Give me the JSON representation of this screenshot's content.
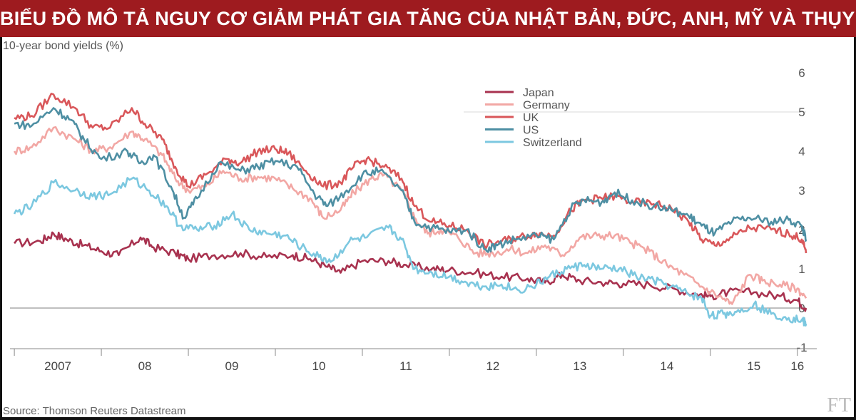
{
  "banner": {
    "title": "BIỂU ĐỒ MÔ TẢ NGUY CƠ GIẢM PHÁT GIA TĂNG CỦA NHẬT BẢN, ĐỨC, ANH, MỸ VÀ THỤY SỸ"
  },
  "footer": {
    "source": "Source: Thomson Reuters Datastream",
    "logo_text": "FT"
  },
  "chart_data": {
    "type": "line",
    "ylabel": "10-year bond yields (%)",
    "ylim": [
      -1,
      6
    ],
    "y_ticks": [
      6,
      5,
      4,
      3,
      2,
      1,
      0,
      -1
    ],
    "x_range": [
      2006.95,
      2016.1
    ],
    "x_ticks": [
      {
        "label": "2007",
        "x": 2007.5
      },
      {
        "label": "08",
        "x": 2008.5
      },
      {
        "label": "09",
        "x": 2009.5
      },
      {
        "label": "10",
        "x": 2010.5
      },
      {
        "label": "11",
        "x": 2011.5
      },
      {
        "label": "12",
        "x": 2012.5
      },
      {
        "label": "13",
        "x": 2013.5
      },
      {
        "label": "14",
        "x": 2014.5
      },
      {
        "label": "15",
        "x": 2015.5
      },
      {
        "label": "16",
        "x": 2016.0
      }
    ],
    "grid": true,
    "legend_position": "top-center",
    "series": [
      {
        "name": "Japan",
        "color": "#a8324f",
        "points": [
          [
            2007.0,
            1.65
          ],
          [
            2007.3,
            1.7
          ],
          [
            2007.45,
            1.9
          ],
          [
            2007.6,
            1.75
          ],
          [
            2007.8,
            1.6
          ],
          [
            2008.0,
            1.45
          ],
          [
            2008.2,
            1.35
          ],
          [
            2008.45,
            1.8
          ],
          [
            2008.6,
            1.55
          ],
          [
            2008.85,
            1.4
          ],
          [
            2009.0,
            1.25
          ],
          [
            2009.3,
            1.35
          ],
          [
            2009.6,
            1.4
          ],
          [
            2009.9,
            1.3
          ],
          [
            2010.2,
            1.35
          ],
          [
            2010.4,
            1.25
          ],
          [
            2010.6,
            1.05
          ],
          [
            2010.75,
            0.9
          ],
          [
            2011.0,
            1.2
          ],
          [
            2011.3,
            1.2
          ],
          [
            2011.5,
            1.1
          ],
          [
            2011.8,
            1.0
          ],
          [
            2012.0,
            0.97
          ],
          [
            2012.3,
            0.9
          ],
          [
            2012.6,
            0.8
          ],
          [
            2012.9,
            0.75
          ],
          [
            2013.1,
            0.65
          ],
          [
            2013.3,
            0.85
          ],
          [
            2013.5,
            0.7
          ],
          [
            2013.8,
            0.65
          ],
          [
            2014.0,
            0.62
          ],
          [
            2014.3,
            0.6
          ],
          [
            2014.6,
            0.48
          ],
          [
            2014.85,
            0.35
          ],
          [
            2015.0,
            0.3
          ],
          [
            2015.2,
            0.4
          ],
          [
            2015.5,
            0.4
          ],
          [
            2015.8,
            0.3
          ],
          [
            2016.0,
            0.2
          ],
          [
            2016.1,
            0.0
          ]
        ]
      },
      {
        "name": "Germany",
        "color": "#f2a7a4",
        "points": [
          [
            2007.0,
            4.0
          ],
          [
            2007.2,
            4.1
          ],
          [
            2007.45,
            4.6
          ],
          [
            2007.7,
            4.3
          ],
          [
            2007.9,
            4.0
          ],
          [
            2008.1,
            4.1
          ],
          [
            2008.35,
            4.5
          ],
          [
            2008.5,
            4.3
          ],
          [
            2008.7,
            3.9
          ],
          [
            2008.85,
            3.3
          ],
          [
            2009.0,
            3.0
          ],
          [
            2009.2,
            3.1
          ],
          [
            2009.4,
            3.5
          ],
          [
            2009.6,
            3.3
          ],
          [
            2009.8,
            3.35
          ],
          [
            2010.0,
            3.3
          ],
          [
            2010.2,
            3.05
          ],
          [
            2010.4,
            2.8
          ],
          [
            2010.55,
            2.3
          ],
          [
            2010.75,
            2.5
          ],
          [
            2010.9,
            2.95
          ],
          [
            2011.1,
            3.3
          ],
          [
            2011.25,
            3.4
          ],
          [
            2011.45,
            3.0
          ],
          [
            2011.6,
            2.3
          ],
          [
            2011.75,
            1.9
          ],
          [
            2011.9,
            2.0
          ],
          [
            2012.1,
            1.8
          ],
          [
            2012.3,
            1.4
          ],
          [
            2012.5,
            1.4
          ],
          [
            2012.7,
            1.5
          ],
          [
            2012.9,
            1.4
          ],
          [
            2013.1,
            1.6
          ],
          [
            2013.3,
            1.35
          ],
          [
            2013.5,
            1.8
          ],
          [
            2013.7,
            1.85
          ],
          [
            2013.9,
            1.85
          ],
          [
            2014.1,
            1.65
          ],
          [
            2014.3,
            1.45
          ],
          [
            2014.5,
            1.1
          ],
          [
            2014.7,
            0.85
          ],
          [
            2014.9,
            0.55
          ],
          [
            2015.1,
            0.3
          ],
          [
            2015.25,
            0.1
          ],
          [
            2015.45,
            0.85
          ],
          [
            2015.6,
            0.7
          ],
          [
            2015.8,
            0.6
          ],
          [
            2016.0,
            0.5
          ],
          [
            2016.1,
            0.25
          ]
        ]
      },
      {
        "name": "UK",
        "color": "#d9575a",
        "points": [
          [
            2007.0,
            4.85
          ],
          [
            2007.2,
            4.9
          ],
          [
            2007.45,
            5.45
          ],
          [
            2007.7,
            5.1
          ],
          [
            2007.9,
            4.6
          ],
          [
            2008.1,
            4.6
          ],
          [
            2008.35,
            5.1
          ],
          [
            2008.5,
            4.7
          ],
          [
            2008.7,
            4.3
          ],
          [
            2008.85,
            3.6
          ],
          [
            2009.0,
            3.1
          ],
          [
            2009.2,
            3.4
          ],
          [
            2009.45,
            3.8
          ],
          [
            2009.6,
            3.7
          ],
          [
            2009.8,
            4.0
          ],
          [
            2010.0,
            4.05
          ],
          [
            2010.15,
            3.95
          ],
          [
            2010.35,
            3.5
          ],
          [
            2010.55,
            3.1
          ],
          [
            2010.75,
            3.2
          ],
          [
            2010.9,
            3.6
          ],
          [
            2011.05,
            3.8
          ],
          [
            2011.25,
            3.6
          ],
          [
            2011.45,
            3.3
          ],
          [
            2011.6,
            2.6
          ],
          [
            2011.8,
            2.2
          ],
          [
            2012.0,
            2.1
          ],
          [
            2012.2,
            2.0
          ],
          [
            2012.4,
            1.6
          ],
          [
            2012.6,
            1.7
          ],
          [
            2012.8,
            1.8
          ],
          [
            2013.0,
            1.9
          ],
          [
            2013.2,
            1.85
          ],
          [
            2013.4,
            2.5
          ],
          [
            2013.55,
            2.75
          ],
          [
            2013.75,
            2.8
          ],
          [
            2013.9,
            2.85
          ],
          [
            2014.1,
            2.7
          ],
          [
            2014.35,
            2.65
          ],
          [
            2014.55,
            2.55
          ],
          [
            2014.75,
            2.2
          ],
          [
            2014.9,
            1.75
          ],
          [
            2015.05,
            1.6
          ],
          [
            2015.25,
            1.8
          ],
          [
            2015.45,
            2.05
          ],
          [
            2015.7,
            2.0
          ],
          [
            2015.9,
            1.9
          ],
          [
            2016.05,
            1.75
          ],
          [
            2016.1,
            1.4
          ]
        ]
      },
      {
        "name": "US",
        "color": "#4e8fa3",
        "points": [
          [
            2007.0,
            4.7
          ],
          [
            2007.2,
            4.65
          ],
          [
            2007.45,
            5.1
          ],
          [
            2007.65,
            4.8
          ],
          [
            2007.8,
            4.3
          ],
          [
            2008.0,
            3.8
          ],
          [
            2008.3,
            4.0
          ],
          [
            2008.45,
            3.7
          ],
          [
            2008.6,
            3.9
          ],
          [
            2008.8,
            3.1
          ],
          [
            2008.95,
            2.3
          ],
          [
            2009.1,
            2.8
          ],
          [
            2009.35,
            3.7
          ],
          [
            2009.6,
            3.5
          ],
          [
            2009.8,
            3.6
          ],
          [
            2010.0,
            3.75
          ],
          [
            2010.25,
            3.6
          ],
          [
            2010.45,
            2.9
          ],
          [
            2010.6,
            2.6
          ],
          [
            2010.8,
            2.95
          ],
          [
            2011.0,
            3.4
          ],
          [
            2011.2,
            3.5
          ],
          [
            2011.45,
            3.0
          ],
          [
            2011.6,
            2.2
          ],
          [
            2011.8,
            2.05
          ],
          [
            2012.0,
            1.95
          ],
          [
            2012.2,
            2.0
          ],
          [
            2012.4,
            1.5
          ],
          [
            2012.55,
            1.6
          ],
          [
            2012.75,
            1.75
          ],
          [
            2013.0,
            1.85
          ],
          [
            2013.2,
            1.75
          ],
          [
            2013.4,
            2.55
          ],
          [
            2013.55,
            2.75
          ],
          [
            2013.75,
            2.7
          ],
          [
            2013.9,
            2.95
          ],
          [
            2014.1,
            2.75
          ],
          [
            2014.35,
            2.6
          ],
          [
            2014.55,
            2.5
          ],
          [
            2014.75,
            2.35
          ],
          [
            2014.9,
            2.1
          ],
          [
            2015.05,
            1.9
          ],
          [
            2015.25,
            2.2
          ],
          [
            2015.45,
            2.3
          ],
          [
            2015.7,
            2.2
          ],
          [
            2015.9,
            2.25
          ],
          [
            2016.05,
            2.1
          ],
          [
            2016.1,
            1.75
          ]
        ]
      },
      {
        "name": "Switzerland",
        "color": "#7cc8e0",
        "points": [
          [
            2007.0,
            2.4
          ],
          [
            2007.2,
            2.6
          ],
          [
            2007.45,
            3.2
          ],
          [
            2007.7,
            3.0
          ],
          [
            2007.9,
            2.85
          ],
          [
            2008.1,
            2.9
          ],
          [
            2008.35,
            3.3
          ],
          [
            2008.55,
            3.0
          ],
          [
            2008.75,
            2.6
          ],
          [
            2008.9,
            2.1
          ],
          [
            2009.1,
            2.0
          ],
          [
            2009.3,
            2.1
          ],
          [
            2009.5,
            2.4
          ],
          [
            2009.7,
            2.0
          ],
          [
            2009.9,
            1.9
          ],
          [
            2010.1,
            1.85
          ],
          [
            2010.3,
            1.55
          ],
          [
            2010.5,
            1.3
          ],
          [
            2010.65,
            1.2
          ],
          [
            2010.85,
            1.7
          ],
          [
            2011.05,
            1.8
          ],
          [
            2011.3,
            2.05
          ],
          [
            2011.45,
            1.75
          ],
          [
            2011.6,
            1.0
          ],
          [
            2011.8,
            0.9
          ],
          [
            2012.0,
            0.8
          ],
          [
            2012.2,
            0.65
          ],
          [
            2012.4,
            0.55
          ],
          [
            2012.6,
            0.6
          ],
          [
            2012.8,
            0.45
          ],
          [
            2013.0,
            0.6
          ],
          [
            2013.15,
            0.8
          ],
          [
            2013.35,
            1.0
          ],
          [
            2013.55,
            1.1
          ],
          [
            2013.75,
            1.0
          ],
          [
            2013.95,
            1.0
          ],
          [
            2014.15,
            0.8
          ],
          [
            2014.35,
            0.7
          ],
          [
            2014.55,
            0.55
          ],
          [
            2014.75,
            0.35
          ],
          [
            2014.9,
            0.25
          ],
          [
            2015.0,
            -0.2
          ],
          [
            2015.15,
            -0.15
          ],
          [
            2015.3,
            -0.1
          ],
          [
            2015.5,
            0.1
          ],
          [
            2015.7,
            -0.15
          ],
          [
            2015.9,
            -0.25
          ],
          [
            2016.05,
            -0.3
          ],
          [
            2016.1,
            -0.4
          ]
        ]
      }
    ]
  }
}
